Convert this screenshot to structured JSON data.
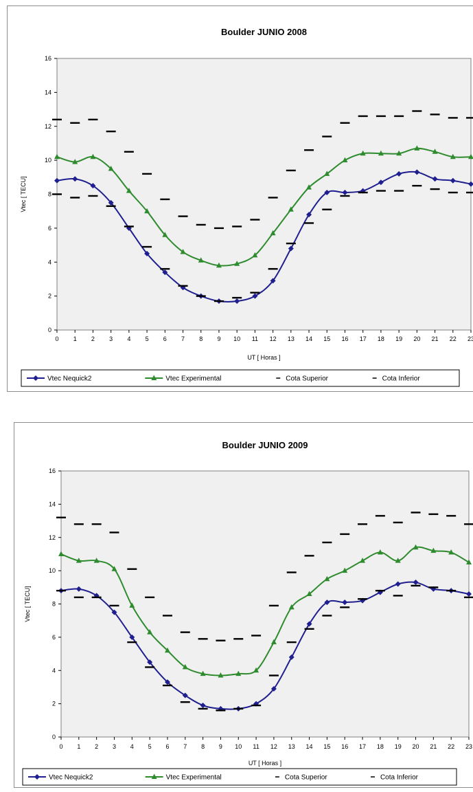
{
  "chart_data": [
    {
      "type": "line",
      "title": "Boulder JUNIO 2008",
      "xlabel": "UT [ Horas ]",
      "ylabel": "Vtec [ TECU]",
      "ylim": [
        0,
        16
      ],
      "yticks": [
        "0",
        "2",
        "4",
        "6",
        "8",
        "10",
        "12",
        "14",
        "16"
      ],
      "x": [
        0,
        1,
        2,
        3,
        4,
        5,
        6,
        7,
        8,
        9,
        10,
        11,
        12,
        13,
        14,
        15,
        16,
        17,
        18,
        19,
        20,
        21,
        22,
        23
      ],
      "xtick_labels": [
        "0",
        "1",
        "2",
        "3",
        "4",
        "5",
        "6",
        "7",
        "8",
        "9",
        "10",
        "11",
        "12",
        "13",
        "14",
        "15",
        "16",
        "17",
        "18",
        "19",
        "20",
        "21",
        "22",
        "23"
      ],
      "grid": false,
      "legend_position": "bottom",
      "series": [
        {
          "name": "Vtec Nequick2",
          "color": "#1f1f8f",
          "marker": "diamond",
          "values": [
            8.8,
            8.9,
            8.5,
            7.5,
            6.0,
            4.5,
            3.4,
            2.5,
            2.0,
            1.7,
            1.7,
            2.0,
            2.9,
            4.8,
            6.8,
            8.1,
            8.1,
            8.2,
            8.7,
            9.2,
            9.3,
            8.9,
            8.8,
            8.6
          ]
        },
        {
          "name": "Vtec Experimental",
          "color": "#2e8b2e",
          "marker": "triangle",
          "values": [
            10.2,
            9.9,
            10.2,
            9.5,
            8.2,
            7.0,
            5.6,
            4.6,
            4.1,
            3.8,
            3.9,
            4.4,
            5.7,
            7.1,
            8.4,
            9.2,
            10.0,
            10.4,
            10.4,
            10.4,
            10.7,
            10.5,
            10.2,
            10.2
          ]
        },
        {
          "name": "Cota Superior",
          "color": "#000000",
          "marker": "dash",
          "values": [
            12.4,
            12.2,
            12.4,
            11.7,
            10.5,
            9.2,
            7.7,
            6.7,
            6.2,
            6.0,
            6.1,
            6.5,
            7.8,
            9.4,
            10.6,
            11.4,
            12.2,
            12.6,
            12.6,
            12.6,
            12.9,
            12.7,
            12.5,
            12.5
          ]
        },
        {
          "name": "Cota Inferior",
          "color": "#000000",
          "marker": "dash",
          "values": [
            8.0,
            7.8,
            7.9,
            7.3,
            6.1,
            4.9,
            3.6,
            2.6,
            2.0,
            1.7,
            1.9,
            2.2,
            3.6,
            5.1,
            6.3,
            7.1,
            7.9,
            8.1,
            8.2,
            8.2,
            8.5,
            8.3,
            8.1,
            8.1
          ]
        }
      ]
    },
    {
      "type": "line",
      "title": "Boulder JUNIO 2009",
      "xlabel": "UT [ Horas ]",
      "ylabel": "Vtec [ TECU]",
      "ylim": [
        0,
        16
      ],
      "yticks": [
        "0",
        "2",
        "4",
        "6",
        "8",
        "10",
        "12",
        "14",
        "16"
      ],
      "x": [
        0,
        1,
        2,
        3,
        4,
        5,
        6,
        7,
        8,
        9,
        10,
        11,
        12,
        13,
        14,
        15,
        16,
        17,
        18,
        19,
        20,
        21,
        22,
        23
      ],
      "xtick_labels": [
        "0",
        "1",
        "2",
        "3",
        "4",
        "5",
        "6",
        "7",
        "8",
        "9",
        "10",
        "11",
        "12",
        "13",
        "14",
        "15",
        "16",
        "17",
        "18",
        "19",
        "20",
        "21",
        "22",
        "23"
      ],
      "grid": false,
      "legend_position": "bottom",
      "series": [
        {
          "name": "Vtec Nequick2",
          "color": "#1f1f8f",
          "marker": "diamond",
          "values": [
            8.8,
            8.9,
            8.5,
            7.5,
            6.0,
            4.5,
            3.3,
            2.5,
            1.9,
            1.7,
            1.7,
            2.0,
            2.9,
            4.8,
            6.8,
            8.1,
            8.1,
            8.2,
            8.7,
            9.2,
            9.3,
            8.9,
            8.8,
            8.6
          ]
        },
        {
          "name": "Vtec Experimental",
          "color": "#2e8b2e",
          "marker": "triangle",
          "values": [
            11.0,
            10.6,
            10.6,
            10.1,
            7.9,
            6.3,
            5.2,
            4.2,
            3.8,
            3.7,
            3.8,
            4.0,
            5.7,
            7.8,
            8.6,
            9.5,
            10.0,
            10.6,
            11.1,
            10.6,
            11.4,
            11.2,
            11.1,
            10.5
          ]
        },
        {
          "name": "Cota Superior",
          "color": "#000000",
          "marker": "dash",
          "values": [
            13.2,
            12.8,
            12.8,
            12.3,
            10.1,
            8.4,
            7.3,
            6.3,
            5.9,
            5.8,
            5.9,
            6.1,
            7.9,
            9.9,
            10.9,
            11.7,
            12.2,
            12.8,
            13.3,
            12.9,
            13.5,
            13.4,
            13.3,
            12.8
          ]
        },
        {
          "name": "Cota Inferior",
          "color": "#000000",
          "marker": "dash",
          "values": [
            8.8,
            8.4,
            8.4,
            7.9,
            5.7,
            4.2,
            3.1,
            2.1,
            1.7,
            1.6,
            1.7,
            1.9,
            3.7,
            5.7,
            6.5,
            7.3,
            7.8,
            8.3,
            8.8,
            8.5,
            9.1,
            9.0,
            8.8,
            8.4
          ]
        }
      ]
    }
  ]
}
